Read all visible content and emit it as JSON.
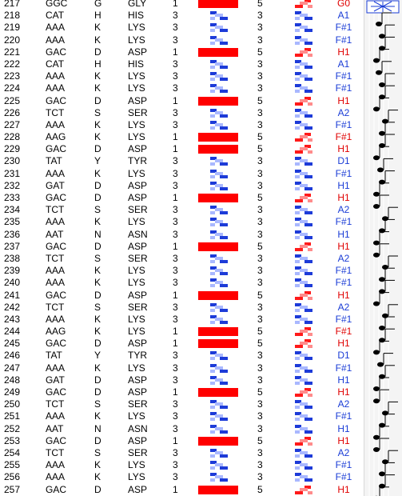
{
  "colors": {
    "red_bar": "#ff0000",
    "note_red": "#e00000",
    "note_blue": "#1a3cd6",
    "helix_blue": "#1d3bd8",
    "helix_red": "#ff1a1a"
  },
  "first_note": "G0",
  "rows": [
    {
      "num": "218",
      "codon": "CAT",
      "aa": "H",
      "name": "HIS",
      "v1": "3",
      "v2": "3",
      "note": "A1",
      "type": "b"
    },
    {
      "num": "219",
      "codon": "AAA",
      "aa": "K",
      "name": "LYS",
      "v1": "3",
      "v2": "3",
      "note": "F#1",
      "type": "b"
    },
    {
      "num": "220",
      "codon": "AAA",
      "aa": "K",
      "name": "LYS",
      "v1": "3",
      "v2": "3",
      "note": "F#1",
      "type": "b"
    },
    {
      "num": "221",
      "codon": "GAC",
      "aa": "D",
      "name": "ASP",
      "v1": "1",
      "v2": "5",
      "note": "H1",
      "type": "r"
    },
    {
      "num": "222",
      "codon": "CAT",
      "aa": "H",
      "name": "HIS",
      "v1": "3",
      "v2": "3",
      "note": "A1",
      "type": "b"
    },
    {
      "num": "223",
      "codon": "AAA",
      "aa": "K",
      "name": "LYS",
      "v1": "3",
      "v2": "3",
      "note": "F#1",
      "type": "b"
    },
    {
      "num": "224",
      "codon": "AAA",
      "aa": "K",
      "name": "LYS",
      "v1": "3",
      "v2": "3",
      "note": "F#1",
      "type": "b"
    },
    {
      "num": "225",
      "codon": "GAC",
      "aa": "D",
      "name": "ASP",
      "v1": "1",
      "v2": "5",
      "note": "H1",
      "type": "r"
    },
    {
      "num": "226",
      "codon": "TCT",
      "aa": "S",
      "name": "SER",
      "v1": "3",
      "v2": "3",
      "note": "A2",
      "type": "b"
    },
    {
      "num": "227",
      "codon": "AAA",
      "aa": "K",
      "name": "LYS",
      "v1": "3",
      "v2": "3",
      "note": "F#1",
      "type": "b"
    },
    {
      "num": "228",
      "codon": "AAG",
      "aa": "K",
      "name": "LYS",
      "v1": "1",
      "v2": "5",
      "note": "F#1",
      "type": "r"
    },
    {
      "num": "229",
      "codon": "GAC",
      "aa": "D",
      "name": "ASP",
      "v1": "1",
      "v2": "5",
      "note": "H1",
      "type": "r"
    },
    {
      "num": "230",
      "codon": "TAT",
      "aa": "Y",
      "name": "TYR",
      "v1": "3",
      "v2": "3",
      "note": "D1",
      "type": "b"
    },
    {
      "num": "231",
      "codon": "AAA",
      "aa": "K",
      "name": "LYS",
      "v1": "3",
      "v2": "3",
      "note": "F#1",
      "type": "b"
    },
    {
      "num": "232",
      "codon": "GAT",
      "aa": "D",
      "name": "ASP",
      "v1": "3",
      "v2": "3",
      "note": "H1",
      "type": "b"
    },
    {
      "num": "233",
      "codon": "GAC",
      "aa": "D",
      "name": "ASP",
      "v1": "1",
      "v2": "5",
      "note": "H1",
      "type": "r"
    },
    {
      "num": "234",
      "codon": "TCT",
      "aa": "S",
      "name": "SER",
      "v1": "3",
      "v2": "3",
      "note": "A2",
      "type": "b"
    },
    {
      "num": "235",
      "codon": "AAA",
      "aa": "K",
      "name": "LYS",
      "v1": "3",
      "v2": "3",
      "note": "F#1",
      "type": "b"
    },
    {
      "num": "236",
      "codon": "AAT",
      "aa": "N",
      "name": "ASN",
      "v1": "3",
      "v2": "3",
      "note": "H1",
      "type": "b"
    },
    {
      "num": "237",
      "codon": "GAC",
      "aa": "D",
      "name": "ASP",
      "v1": "1",
      "v2": "5",
      "note": "H1",
      "type": "r"
    },
    {
      "num": "238",
      "codon": "TCT",
      "aa": "S",
      "name": "SER",
      "v1": "3",
      "v2": "3",
      "note": "A2",
      "type": "b"
    },
    {
      "num": "239",
      "codon": "AAA",
      "aa": "K",
      "name": "LYS",
      "v1": "3",
      "v2": "3",
      "note": "F#1",
      "type": "b"
    },
    {
      "num": "240",
      "codon": "AAA",
      "aa": "K",
      "name": "LYS",
      "v1": "3",
      "v2": "3",
      "note": "F#1",
      "type": "b"
    },
    {
      "num": "241",
      "codon": "GAC",
      "aa": "D",
      "name": "ASP",
      "v1": "1",
      "v2": "5",
      "note": "H1",
      "type": "r"
    },
    {
      "num": "242",
      "codon": "TCT",
      "aa": "S",
      "name": "SER",
      "v1": "3",
      "v2": "3",
      "note": "A2",
      "type": "b"
    },
    {
      "num": "243",
      "codon": "AAA",
      "aa": "K",
      "name": "LYS",
      "v1": "3",
      "v2": "3",
      "note": "F#1",
      "type": "b"
    },
    {
      "num": "244",
      "codon": "AAG",
      "aa": "K",
      "name": "LYS",
      "v1": "1",
      "v2": "5",
      "note": "F#1",
      "type": "r"
    },
    {
      "num": "245",
      "codon": "GAC",
      "aa": "D",
      "name": "ASP",
      "v1": "1",
      "v2": "5",
      "note": "H1",
      "type": "r"
    },
    {
      "num": "246",
      "codon": "TAT",
      "aa": "Y",
      "name": "TYR",
      "v1": "3",
      "v2": "3",
      "note": "D1",
      "type": "b"
    },
    {
      "num": "247",
      "codon": "AAA",
      "aa": "K",
      "name": "LYS",
      "v1": "3",
      "v2": "3",
      "note": "F#1",
      "type": "b"
    },
    {
      "num": "248",
      "codon": "GAT",
      "aa": "D",
      "name": "ASP",
      "v1": "3",
      "v2": "3",
      "note": "H1",
      "type": "b"
    },
    {
      "num": "249",
      "codon": "GAC",
      "aa": "D",
      "name": "ASP",
      "v1": "1",
      "v2": "5",
      "note": "H1",
      "type": "r"
    },
    {
      "num": "250",
      "codon": "TCT",
      "aa": "S",
      "name": "SER",
      "v1": "3",
      "v2": "3",
      "note": "A2",
      "type": "b"
    },
    {
      "num": "251",
      "codon": "AAA",
      "aa": "K",
      "name": "LYS",
      "v1": "3",
      "v2": "3",
      "note": "F#1",
      "type": "b"
    },
    {
      "num": "252",
      "codon": "AAT",
      "aa": "N",
      "name": "ASN",
      "v1": "3",
      "v2": "3",
      "note": "H1",
      "type": "b"
    },
    {
      "num": "253",
      "codon": "GAC",
      "aa": "D",
      "name": "ASP",
      "v1": "1",
      "v2": "5",
      "note": "H1",
      "type": "r"
    },
    {
      "num": "254",
      "codon": "TCT",
      "aa": "S",
      "name": "SER",
      "v1": "3",
      "v2": "3",
      "note": "A2",
      "type": "b"
    },
    {
      "num": "255",
      "codon": "AAA",
      "aa": "K",
      "name": "LYS",
      "v1": "3",
      "v2": "3",
      "note": "F#1",
      "type": "b"
    },
    {
      "num": "256",
      "codon": "AAA",
      "aa": "K",
      "name": "LYS",
      "v1": "3",
      "v2": "3",
      "note": "F#1",
      "type": "b"
    },
    {
      "num": "257",
      "codon": "GAC",
      "aa": "D",
      "name": "ASP",
      "v1": "1",
      "v2": "5",
      "note": "H1",
      "type": "r"
    }
  ],
  "top_row": {
    "num": "217",
    "codon": "GGC",
    "aa": "G",
    "name": "GLY",
    "v1": "1",
    "v2": "5"
  }
}
